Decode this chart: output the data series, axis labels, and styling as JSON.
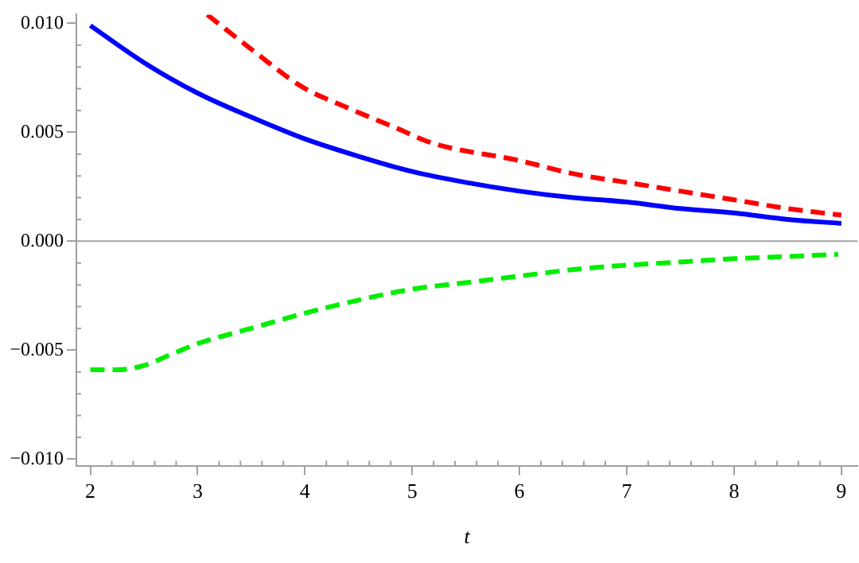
{
  "chart_data": {
    "type": "line",
    "xlabel": "t",
    "xlim": [
      1.87,
      9.15
    ],
    "xticks": [
      2,
      3,
      4,
      5,
      6,
      7,
      8,
      9
    ],
    "ylim": [
      -0.0103,
      0.0104
    ],
    "yticks": [
      {
        "value": -0.01,
        "label": "−0.010"
      },
      {
        "value": -0.005,
        "label": "−0.005"
      },
      {
        "value": 0,
        "label": "0.000"
      },
      {
        "value": 0.005,
        "label": "0.005"
      },
      {
        "value": 0.01,
        "label": "0.010"
      }
    ],
    "grid": false,
    "legend": false,
    "marker": "none",
    "ref_lines": [
      {
        "axis": "y",
        "value": 0,
        "color": "#a0a0a0"
      }
    ],
    "series": [
      {
        "color": "#0000ff",
        "line_style": "solid",
        "x": [
          2,
          2.5,
          3,
          3.5,
          4,
          4.5,
          5,
          5.5,
          6,
          6.5,
          7,
          7.5,
          8,
          8.5,
          9
        ],
        "values": [
          0.0099,
          0.0082,
          0.0068,
          0.0057,
          0.0047,
          0.0039,
          0.0032,
          0.0027,
          0.0023,
          0.002,
          0.0018,
          0.0015,
          0.0013,
          0.001,
          0.00082
        ]
      },
      {
        "color": "#ff0000",
        "line_style": "dashed",
        "x": [
          3.09,
          3.53,
          3.97,
          4.41,
          4.85,
          5.19,
          6,
          6.5,
          7,
          7.5,
          8,
          8.5,
          9
        ],
        "values": [
          0.0104,
          0.0087,
          0.0071,
          0.0061,
          0.0052,
          0.0045,
          0.0037,
          0.0031,
          0.0027,
          0.0023,
          0.0019,
          0.0015,
          0.0012
        ]
      },
      {
        "color": "#00ee00",
        "line_style": "dashed",
        "x": [
          2,
          2.25,
          2.5,
          2.75,
          3,
          3.5,
          4,
          4.5,
          5,
          5.5,
          6,
          6.5,
          7,
          7.5,
          8,
          8.5,
          8.97
        ],
        "values": [
          -0.0059,
          -0.0059,
          -0.0057,
          -0.0052,
          -0.0047,
          -0.004,
          -0.0033,
          -0.0027,
          -0.0022,
          -0.0019,
          -0.0016,
          -0.0013,
          -0.0011,
          -0.00095,
          -0.0008,
          -0.0007,
          -0.0006
        ]
      }
    ]
  }
}
